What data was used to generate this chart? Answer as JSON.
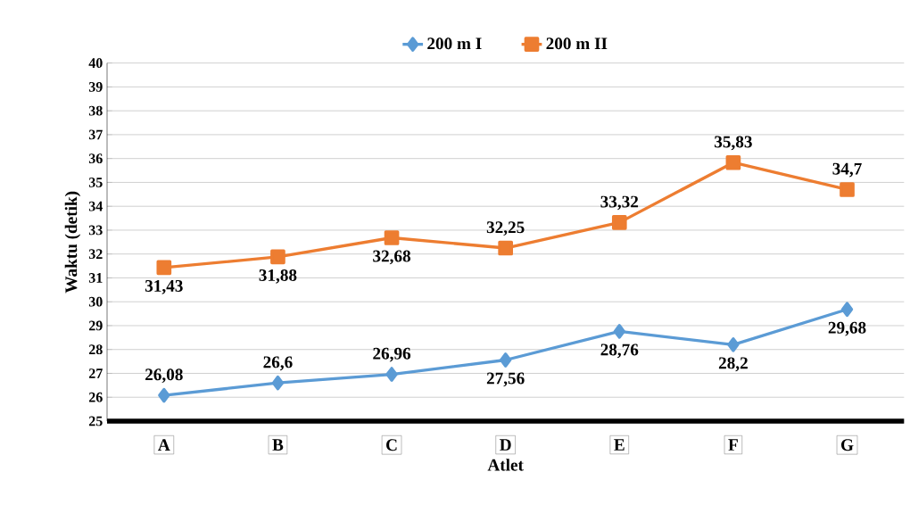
{
  "chart_data": {
    "type": "line",
    "xlabel": "Atlet",
    "ylabel": "Waktu (detik)",
    "categories": [
      "A",
      "B",
      "C",
      "D",
      "E",
      "F",
      "G"
    ],
    "series": [
      {
        "name": "200 m I",
        "color": "#5b9bd5",
        "marker": "diamond",
        "values": [
          26.08,
          26.6,
          26.96,
          27.56,
          28.76,
          28.2,
          29.68
        ],
        "value_labels": [
          "26,08",
          "26,6",
          "26,96",
          "27,56",
          "28,76",
          "28,2",
          "29,68"
        ]
      },
      {
        "name": "200 m II",
        "color": "#ed7d31",
        "marker": "square",
        "values": [
          31.43,
          31.88,
          32.68,
          32.25,
          33.32,
          35.83,
          34.7
        ],
        "value_labels": [
          "31,43",
          "31,88",
          "32,68",
          "32,25",
          "33,32",
          "35,83",
          "34,7"
        ]
      }
    ],
    "ylim": [
      25,
      40
    ],
    "yticks": [
      25,
      26,
      27,
      28,
      29,
      30,
      31,
      32,
      33,
      34,
      35,
      36,
      37,
      38,
      39,
      40
    ],
    "grid": "y",
    "legend": "top"
  }
}
